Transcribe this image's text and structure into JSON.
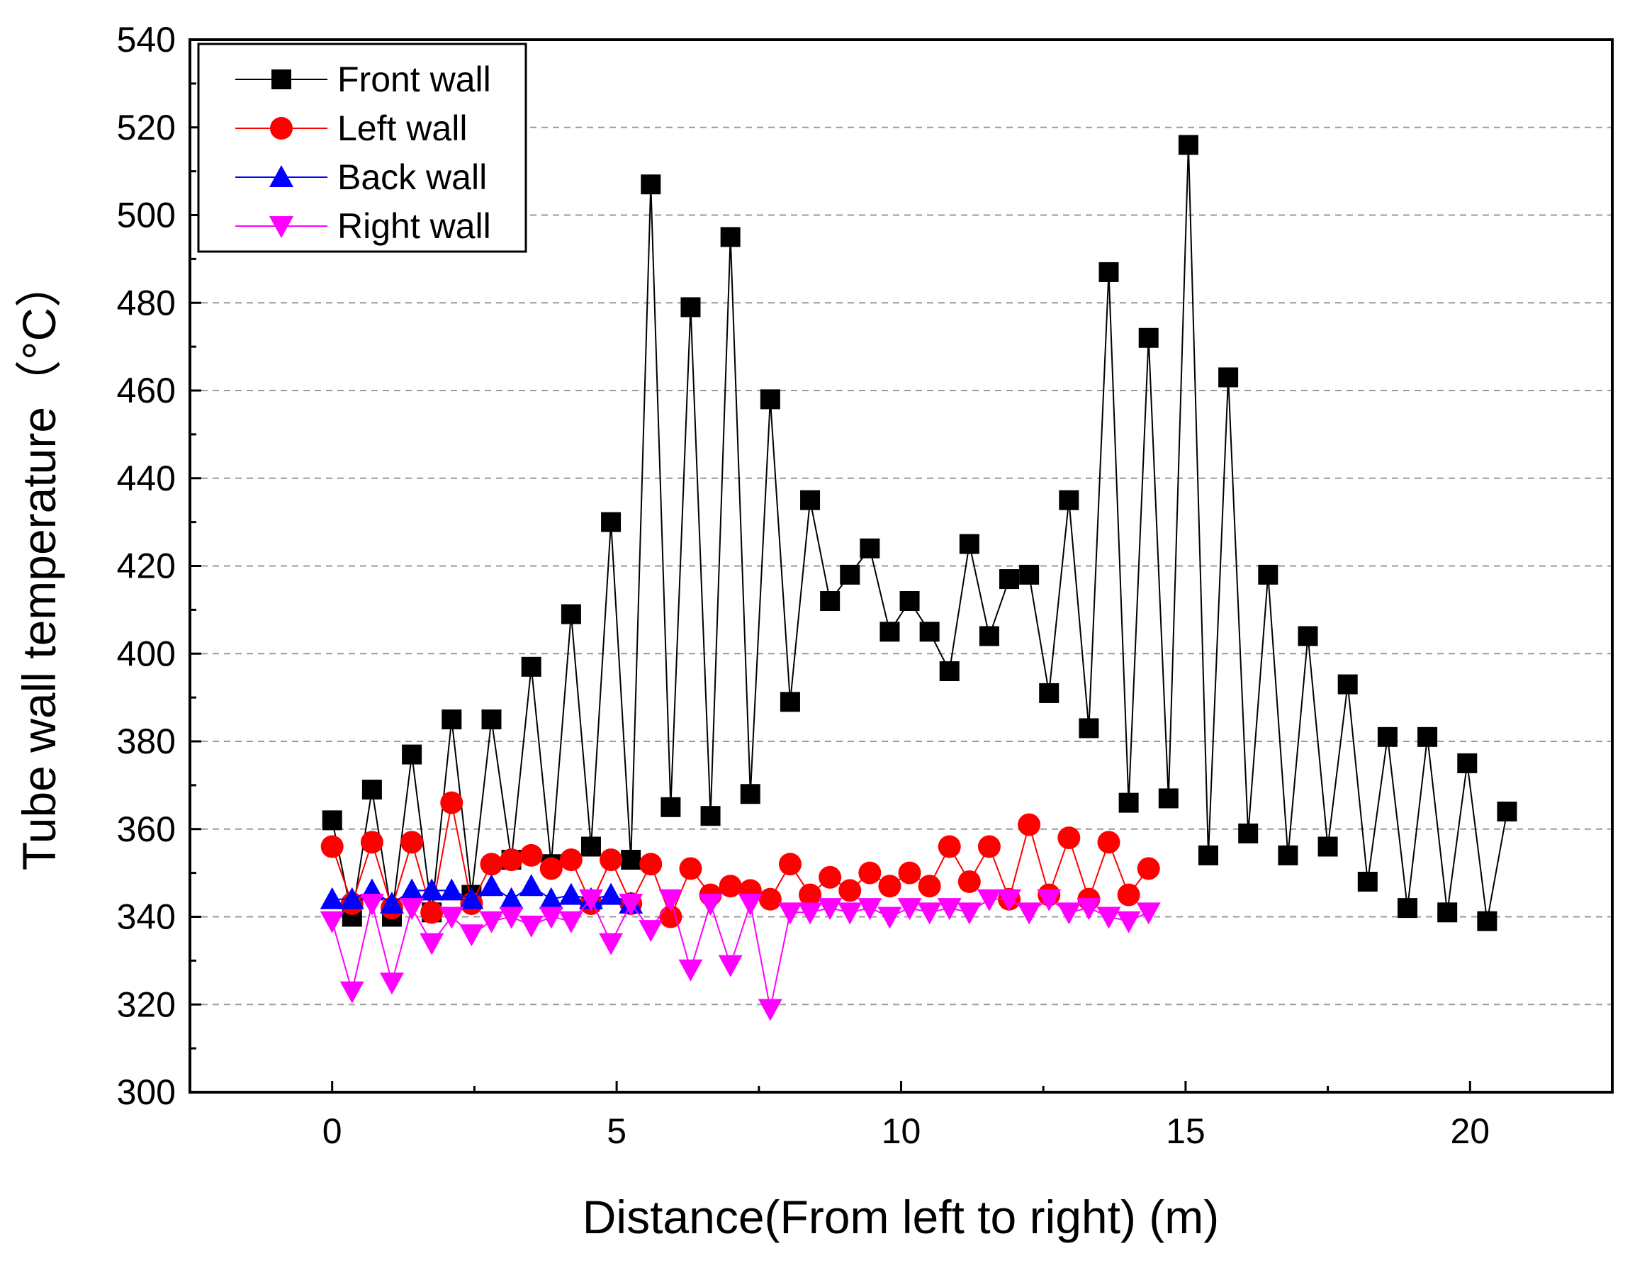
{
  "chart_data": {
    "type": "line",
    "title": "",
    "xlabel": "Distance(From left to right) (m)",
    "ylabel": "Tube wall temperature（°C）",
    "xlim": [
      -2.5,
      22.5
    ],
    "ylim": [
      300,
      540
    ],
    "xticks": [
      0,
      5,
      10,
      15,
      20
    ],
    "yticks": [
      300,
      320,
      340,
      360,
      380,
      400,
      420,
      440,
      460,
      480,
      500,
      520,
      540
    ],
    "grid": "horizontal-dashed",
    "legend_position": "top-left",
    "series": [
      {
        "name": "Front wall",
        "color": "#000000",
        "marker": "square",
        "x": [
          0,
          0.35,
          0.7,
          1.05,
          1.4,
          1.75,
          2.1,
          2.45,
          2.8,
          3.15,
          3.5,
          3.85,
          4.2,
          4.55,
          4.9,
          5.25,
          5.6,
          5.95,
          6.3,
          6.65,
          7.0,
          7.35,
          7.7,
          8.05,
          8.4,
          8.75,
          9.1,
          9.45,
          9.8,
          10.15,
          10.5,
          10.85,
          11.2,
          11.55,
          11.9,
          12.25,
          12.6,
          12.95,
          13.3,
          13.65,
          14.0,
          14.35,
          14.7,
          15.05,
          15.4,
          15.75,
          16.1,
          16.45,
          16.8,
          17.15,
          17.5,
          17.85,
          18.2,
          18.55,
          18.9,
          19.25,
          19.6,
          19.95,
          20.3,
          20.65
        ],
        "values": [
          362,
          340,
          369,
          340,
          377,
          341,
          385,
          345,
          385,
          353,
          397,
          352,
          409,
          356,
          430,
          353,
          507,
          365,
          479,
          363,
          495,
          368,
          458,
          389,
          435,
          412,
          418,
          424,
          405,
          412,
          405,
          396,
          425,
          404,
          417,
          418,
          391,
          435,
          383,
          487,
          366,
          472,
          367,
          516,
          354,
          463,
          359,
          418,
          354,
          404,
          356,
          393,
          348,
          381,
          342,
          381,
          341,
          375,
          339,
          364
        ]
      },
      {
        "name": "Left wall",
        "color": "#ff0000",
        "marker": "circle",
        "x": [
          0,
          0.35,
          0.7,
          1.05,
          1.4,
          1.75,
          2.1,
          2.45,
          2.8,
          3.15,
          3.5,
          3.85,
          4.2,
          4.55,
          4.9,
          5.25,
          5.6,
          5.95,
          6.3,
          6.65,
          7.0,
          7.35,
          7.7,
          8.05,
          8.4,
          8.75,
          9.1,
          9.45,
          9.8,
          10.15,
          10.5,
          10.85,
          11.2,
          11.55,
          11.9,
          12.25,
          12.6,
          12.95,
          13.3,
          13.65,
          14.0,
          14.35
        ],
        "values": [
          356,
          343,
          357,
          342,
          357,
          341,
          366,
          343,
          352,
          353,
          354,
          351,
          353,
          343,
          353,
          343,
          352,
          340,
          351,
          345,
          347,
          346,
          344,
          352,
          345,
          349,
          346,
          350,
          347,
          350,
          347,
          356,
          348,
          356,
          344,
          361,
          345,
          358,
          344,
          357,
          345,
          351
        ]
      },
      {
        "name": "Back wall",
        "color": "#0000ff",
        "marker": "triangle-up",
        "x": [
          0,
          0.35,
          0.7,
          1.05,
          1.4,
          1.75,
          2.1,
          2.45,
          2.8,
          3.15,
          3.5,
          3.85,
          4.2,
          4.55,
          4.9,
          5.25
        ],
        "values": [
          344,
          344,
          346,
          343,
          346,
          346,
          346,
          344,
          347,
          344,
          347,
          344,
          345,
          344,
          345,
          343
        ]
      },
      {
        "name": "Right wall",
        "color": "#ff00ff",
        "marker": "triangle-down",
        "x": [
          0,
          0.35,
          0.7,
          1.05,
          1.4,
          1.75,
          2.1,
          2.45,
          2.8,
          3.15,
          3.5,
          3.85,
          4.2,
          4.55,
          4.9,
          5.25,
          5.6,
          5.95,
          6.3,
          6.65,
          7.0,
          7.35,
          7.7,
          8.05,
          8.4,
          8.75,
          9.1,
          9.45,
          9.8,
          10.15,
          10.5,
          10.85,
          11.2,
          11.55,
          11.9,
          12.25,
          12.6,
          12.95,
          13.3,
          13.65,
          14.0,
          14.35
        ],
        "values": [
          339,
          323,
          343,
          325,
          342,
          334,
          340,
          336,
          339,
          340,
          338,
          340,
          339,
          344,
          334,
          343,
          337,
          344,
          328,
          343,
          329,
          343,
          319,
          341,
          341,
          342,
          341,
          342,
          340,
          342,
          341,
          342,
          341,
          344,
          344,
          341,
          344,
          341,
          342,
          340,
          339,
          341
        ]
      }
    ]
  }
}
